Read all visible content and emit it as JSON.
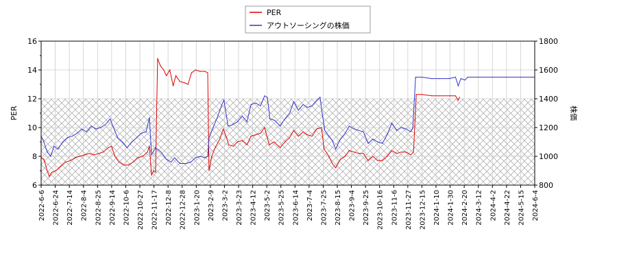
{
  "chart_data": {
    "type": "line",
    "title": "",
    "legend": {
      "placement": "top-center",
      "entries": [
        {
          "label": "PER",
          "color": "#dd0000"
        },
        {
          "label": "アウトソーシングの株価",
          "color": "#3333cc"
        }
      ]
    },
    "y_left": {
      "label": "PER",
      "range": [
        6,
        16
      ],
      "ticks": [
        "6",
        "8",
        "10",
        "12",
        "14",
        "16"
      ]
    },
    "y_right": {
      "label": "株価",
      "range": [
        800,
        1800
      ],
      "ticks": [
        "800",
        "1000",
        "1200",
        "1400",
        "1600",
        "1800"
      ]
    },
    "x_axis": {
      "range": [
        "2022-06-06",
        "2024-06-04"
      ],
      "ticks": [
        "2022-6-6",
        "2022-6-24",
        "2022-7-14",
        "2022-8-4",
        "2022-8-25",
        "2022-9-14",
        "2022-10-6",
        "2022-10-27",
        "2022-11-17",
        "2022-12-8",
        "2022-12-28",
        "2023-1-20",
        "2023-2-9",
        "2023-3-2",
        "2023-3-23",
        "2023-4-12",
        "2023-5-2",
        "2023-5-25",
        "2023-6-14",
        "2023-7-4",
        "2023-7-25",
        "2023-8-15",
        "2023-9-4",
        "2023-9-25",
        "2023-10-16",
        "2023-11-6",
        "2023-11-27",
        "2023-12-15",
        "2024-1-10",
        "2024-1-30",
        "2024-2-20",
        "2024-3-12",
        "2024-4-2",
        "2024-4-22",
        "2024-5-15",
        "2024-6-4"
      ]
    },
    "grid": true,
    "hatched_band": {
      "axis": "left",
      "from": 6,
      "to": 12
    },
    "series": [
      {
        "name": "PER",
        "axis": "left",
        "color": "#dd0000",
        "points": [
          [
            "2022-06-06",
            7.9
          ],
          [
            "2022-06-10",
            7.8
          ],
          [
            "2022-06-15",
            7.0
          ],
          [
            "2022-06-18",
            6.6
          ],
          [
            "2022-06-22",
            6.9
          ],
          [
            "2022-06-28",
            7.0
          ],
          [
            "2022-07-05",
            7.3
          ],
          [
            "2022-07-12",
            7.6
          ],
          [
            "2022-07-19",
            7.7
          ],
          [
            "2022-07-26",
            7.9
          ],
          [
            "2022-08-02",
            8.0
          ],
          [
            "2022-08-09",
            8.1
          ],
          [
            "2022-08-16",
            8.2
          ],
          [
            "2022-08-23",
            8.1
          ],
          [
            "2022-08-30",
            8.2
          ],
          [
            "2022-09-06",
            8.3
          ],
          [
            "2022-09-13",
            8.6
          ],
          [
            "2022-09-18",
            8.7
          ],
          [
            "2022-09-23",
            8.0
          ],
          [
            "2022-09-29",
            7.6
          ],
          [
            "2022-10-06",
            7.4
          ],
          [
            "2022-10-13",
            7.4
          ],
          [
            "2022-10-20",
            7.6
          ],
          [
            "2022-10-27",
            7.9
          ],
          [
            "2022-11-03",
            8.0
          ],
          [
            "2022-11-10",
            8.3
          ],
          [
            "2022-11-13",
            8.7
          ],
          [
            "2022-11-16",
            6.7
          ],
          [
            "2022-11-19",
            7.0
          ],
          [
            "2022-11-22",
            6.9
          ],
          [
            "2022-11-25",
            14.8
          ],
          [
            "2022-11-29",
            14.3
          ],
          [
            "2022-12-04",
            14.0
          ],
          [
            "2022-12-08",
            13.6
          ],
          [
            "2022-12-13",
            14.0
          ],
          [
            "2022-12-18",
            12.9
          ],
          [
            "2022-12-22",
            13.6
          ],
          [
            "2022-12-28",
            13.2
          ],
          [
            "2023-01-04",
            13.1
          ],
          [
            "2023-01-09",
            13.0
          ],
          [
            "2023-01-14",
            13.8
          ],
          [
            "2023-01-20",
            14.0
          ],
          [
            "2023-01-27",
            13.9
          ],
          [
            "2023-02-03",
            13.9
          ],
          [
            "2023-02-07",
            13.8
          ],
          [
            "2023-02-09",
            7.0
          ],
          [
            "2023-02-13",
            8.0
          ],
          [
            "2023-02-18",
            8.6
          ],
          [
            "2023-02-25",
            9.2
          ],
          [
            "2023-03-02",
            9.9
          ],
          [
            "2023-03-06",
            9.4
          ],
          [
            "2023-03-10",
            8.8
          ],
          [
            "2023-03-17",
            8.7
          ],
          [
            "2023-03-23",
            9.0
          ],
          [
            "2023-03-30",
            9.1
          ],
          [
            "2023-04-06",
            8.8
          ],
          [
            "2023-04-12",
            9.4
          ],
          [
            "2023-04-19",
            9.5
          ],
          [
            "2023-04-26",
            9.6
          ],
          [
            "2023-05-02",
            10.0
          ],
          [
            "2023-05-09",
            8.8
          ],
          [
            "2023-05-16",
            9.0
          ],
          [
            "2023-05-25",
            8.6
          ],
          [
            "2023-06-01",
            9.0
          ],
          [
            "2023-06-08",
            9.3
          ],
          [
            "2023-06-14",
            9.8
          ],
          [
            "2023-06-21",
            9.4
          ],
          [
            "2023-06-28",
            9.7
          ],
          [
            "2023-07-04",
            9.5
          ],
          [
            "2023-07-11",
            9.4
          ],
          [
            "2023-07-18",
            9.9
          ],
          [
            "2023-07-25",
            10.0
          ],
          [
            "2023-07-29",
            8.5
          ],
          [
            "2023-08-05",
            8.0
          ],
          [
            "2023-08-10",
            7.5
          ],
          [
            "2023-08-15",
            7.2
          ],
          [
            "2023-08-22",
            7.8
          ],
          [
            "2023-08-29",
            8.0
          ],
          [
            "2023-09-04",
            8.4
          ],
          [
            "2023-09-11",
            8.3
          ],
          [
            "2023-09-18",
            8.2
          ],
          [
            "2023-09-25",
            8.2
          ],
          [
            "2023-10-02",
            7.7
          ],
          [
            "2023-10-09",
            8.0
          ],
          [
            "2023-10-16",
            7.7
          ],
          [
            "2023-10-23",
            7.7
          ],
          [
            "2023-10-30",
            8.0
          ],
          [
            "2023-11-06",
            8.4
          ],
          [
            "2023-11-13",
            8.2
          ],
          [
            "2023-11-20",
            8.3
          ],
          [
            "2023-11-27",
            8.3
          ],
          [
            "2023-12-04",
            8.1
          ],
          [
            "2023-12-08",
            8.3
          ],
          [
            "2023-12-12",
            12.3
          ],
          [
            "2023-12-20",
            12.3
          ],
          [
            "2024-01-04",
            12.2
          ],
          [
            "2024-01-15",
            12.2
          ],
          [
            "2024-01-30",
            12.2
          ],
          [
            "2024-02-08",
            12.2
          ],
          [
            "2024-02-12",
            11.9
          ],
          [
            "2024-02-14",
            12.1
          ]
        ]
      },
      {
        "name": "アウトソーシングの株価",
        "axis": "right",
        "color": "#3333cc",
        "points": [
          [
            "2022-06-06",
            1140
          ],
          [
            "2022-06-10",
            1100
          ],
          [
            "2022-06-15",
            1030
          ],
          [
            "2022-06-20",
            1000
          ],
          [
            "2022-06-25",
            1070
          ],
          [
            "2022-07-01",
            1050
          ],
          [
            "2022-07-08",
            1100
          ],
          [
            "2022-07-15",
            1130
          ],
          [
            "2022-07-22",
            1140
          ],
          [
            "2022-07-29",
            1160
          ],
          [
            "2022-08-05",
            1190
          ],
          [
            "2022-08-12",
            1170
          ],
          [
            "2022-08-19",
            1210
          ],
          [
            "2022-08-26",
            1190
          ],
          [
            "2022-09-02",
            1200
          ],
          [
            "2022-09-09",
            1220
          ],
          [
            "2022-09-16",
            1260
          ],
          [
            "2022-09-20",
            1210
          ],
          [
            "2022-09-27",
            1130
          ],
          [
            "2022-10-04",
            1100
          ],
          [
            "2022-10-11",
            1060
          ],
          [
            "2022-10-18",
            1100
          ],
          [
            "2022-10-25",
            1130
          ],
          [
            "2022-11-01",
            1160
          ],
          [
            "2022-11-08",
            1170
          ],
          [
            "2022-11-13",
            1270
          ],
          [
            "2022-11-16",
            1010
          ],
          [
            "2022-11-22",
            1060
          ],
          [
            "2022-11-30",
            1030
          ],
          [
            "2022-12-08",
            980
          ],
          [
            "2022-12-15",
            960
          ],
          [
            "2022-12-20",
            990
          ],
          [
            "2022-12-28",
            950
          ],
          [
            "2023-01-06",
            950
          ],
          [
            "2023-01-13",
            960
          ],
          [
            "2023-01-20",
            990
          ],
          [
            "2023-01-27",
            1000
          ],
          [
            "2023-02-03",
            990
          ],
          [
            "2023-02-07",
            1000
          ],
          [
            "2023-02-09",
            1130
          ],
          [
            "2023-02-15",
            1200
          ],
          [
            "2023-02-22",
            1280
          ],
          [
            "2023-02-28",
            1360
          ],
          [
            "2023-03-03",
            1390
          ],
          [
            "2023-03-09",
            1210
          ],
          [
            "2023-03-16",
            1220
          ],
          [
            "2023-03-23",
            1240
          ],
          [
            "2023-03-30",
            1280
          ],
          [
            "2023-04-06",
            1240
          ],
          [
            "2023-04-12",
            1360
          ],
          [
            "2023-04-19",
            1370
          ],
          [
            "2023-04-26",
            1350
          ],
          [
            "2023-05-02",
            1420
          ],
          [
            "2023-05-06",
            1410
          ],
          [
            "2023-05-10",
            1260
          ],
          [
            "2023-05-17",
            1250
          ],
          [
            "2023-05-25",
            1210
          ],
          [
            "2023-06-01",
            1260
          ],
          [
            "2023-06-08",
            1300
          ],
          [
            "2023-06-14",
            1380
          ],
          [
            "2023-06-21",
            1320
          ],
          [
            "2023-06-28",
            1360
          ],
          [
            "2023-07-04",
            1340
          ],
          [
            "2023-07-11",
            1350
          ],
          [
            "2023-07-18",
            1390
          ],
          [
            "2023-07-23",
            1410
          ],
          [
            "2023-07-26",
            1300
          ],
          [
            "2023-07-30",
            1180
          ],
          [
            "2023-08-05",
            1140
          ],
          [
            "2023-08-10",
            1110
          ],
          [
            "2023-08-15",
            1050
          ],
          [
            "2023-08-22",
            1120
          ],
          [
            "2023-08-29",
            1160
          ],
          [
            "2023-09-04",
            1210
          ],
          [
            "2023-09-11",
            1190
          ],
          [
            "2023-09-18",
            1180
          ],
          [
            "2023-09-25",
            1170
          ],
          [
            "2023-10-02",
            1090
          ],
          [
            "2023-10-09",
            1120
          ],
          [
            "2023-10-16",
            1100
          ],
          [
            "2023-10-23",
            1090
          ],
          [
            "2023-10-30",
            1150
          ],
          [
            "2023-11-06",
            1230
          ],
          [
            "2023-11-13",
            1180
          ],
          [
            "2023-11-20",
            1200
          ],
          [
            "2023-11-27",
            1190
          ],
          [
            "2023-12-04",
            1170
          ],
          [
            "2023-12-07",
            1200
          ],
          [
            "2023-12-11",
            1550
          ],
          [
            "2023-12-20",
            1550
          ],
          [
            "2024-01-04",
            1540
          ],
          [
            "2024-01-15",
            1540
          ],
          [
            "2024-01-30",
            1540
          ],
          [
            "2024-02-08",
            1550
          ],
          [
            "2024-02-12",
            1490
          ],
          [
            "2024-02-16",
            1540
          ],
          [
            "2024-02-22",
            1530
          ],
          [
            "2024-02-26",
            1550
          ],
          [
            "2024-03-12",
            1550
          ],
          [
            "2024-04-02",
            1550
          ],
          [
            "2024-04-22",
            1550
          ],
          [
            "2024-05-15",
            1550
          ],
          [
            "2024-06-04",
            1550
          ]
        ]
      }
    ]
  }
}
